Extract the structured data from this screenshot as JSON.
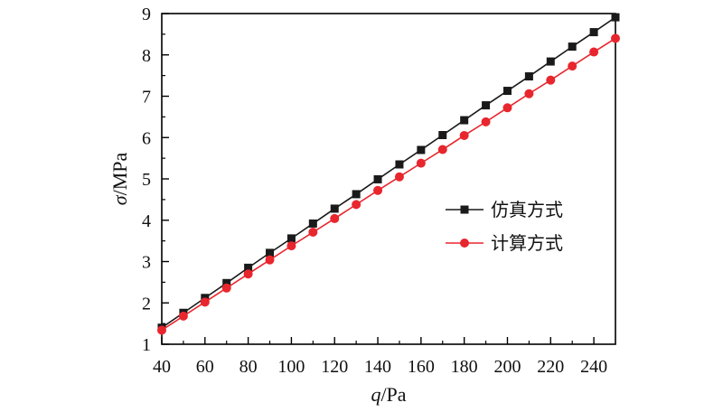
{
  "chart_data": {
    "type": "line",
    "xlabel_var": "q",
    "xlabel_unit": "/Pa",
    "ylabel_var": "σ",
    "ylabel_unit": "/MPa",
    "xlim": [
      40,
      250
    ],
    "ylim": [
      1,
      9
    ],
    "xticks": [
      40,
      60,
      80,
      100,
      120,
      140,
      160,
      180,
      200,
      220,
      240
    ],
    "yticks": [
      1,
      2,
      3,
      4,
      5,
      6,
      7,
      8,
      9
    ],
    "x": [
      40,
      50,
      60,
      70,
      80,
      90,
      100,
      110,
      120,
      130,
      140,
      150,
      160,
      170,
      180,
      190,
      200,
      210,
      220,
      230,
      240,
      250
    ],
    "series": [
      {
        "name": "仿真方式",
        "color": "#1a1a1a",
        "marker": "square",
        "values": [
          1.4,
          1.76,
          2.12,
          2.48,
          2.85,
          3.21,
          3.56,
          3.92,
          4.28,
          4.63,
          4.99,
          5.35,
          5.7,
          6.06,
          6.42,
          6.78,
          7.13,
          7.48,
          7.84,
          8.2,
          8.55,
          8.91
        ]
      },
      {
        "name": "计算方式",
        "color": "#e8262d",
        "marker": "circle",
        "values": [
          1.34,
          1.68,
          2.02,
          2.36,
          2.7,
          3.04,
          3.38,
          3.71,
          4.04,
          4.38,
          4.72,
          5.05,
          5.38,
          5.71,
          6.05,
          6.38,
          6.72,
          7.06,
          7.39,
          7.73,
          8.07,
          8.4
        ]
      }
    ],
    "legend_position": "center-right",
    "grid": false
  }
}
